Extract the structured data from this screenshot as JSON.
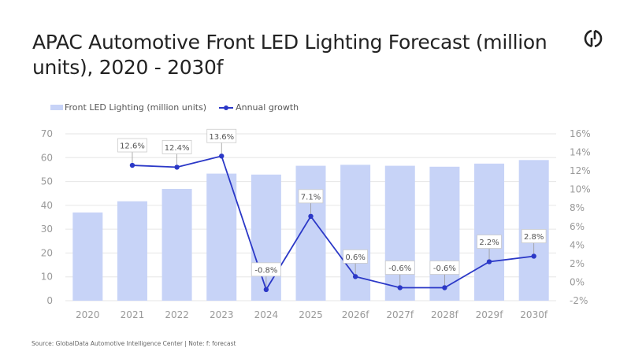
{
  "header": {
    "title": "APAC Automotive Front LED Lighting Forecast (million units), 2020 - 2030f",
    "logo": "globaldata-logo-icon"
  },
  "legend": {
    "bars_label": "Front LED Lighting (million units)",
    "line_label": "Annual growth"
  },
  "footer": {
    "source": "Source: GlobalData Automotive Intelligence Center | Note: f: forecast"
  },
  "colors": {
    "bar": "#c7d3f7",
    "line": "#2b38c7",
    "grid": "#e6e6e6",
    "axis_text": "#999999"
  },
  "chart_data": {
    "type": "bar",
    "title": "APAC Automotive Front LED Lighting Forecast (million units), 2020 - 2030f",
    "xlabel": "",
    "ylabel": "",
    "categories": [
      "2020",
      "2021",
      "2022",
      "2023",
      "2024",
      "2025",
      "2026f",
      "2027f",
      "2028f",
      "2029f",
      "2030f"
    ],
    "series": [
      {
        "name": "Front LED Lighting (million units)",
        "type": "bar",
        "axis": "left",
        "values": [
          37.0,
          41.7,
          46.9,
          53.3,
          52.9,
          56.6,
          57.0,
          56.6,
          56.2,
          57.5,
          59.0
        ]
      },
      {
        "name": "Annual growth",
        "type": "line",
        "axis": "right",
        "values": [
          null,
          12.6,
          12.4,
          13.6,
          -0.8,
          7.1,
          0.6,
          -0.6,
          -0.6,
          2.2,
          2.8
        ],
        "labels": [
          null,
          "12.6%",
          "12.4%",
          "13.6%",
          "-0.8%",
          "7.1%",
          "0.6%",
          "-0.6%",
          "-0.6%",
          "2.2%",
          "2.8%"
        ]
      }
    ],
    "y_left": {
      "min": 0,
      "max": 70,
      "ticks": [
        0,
        10,
        20,
        30,
        40,
        50,
        60,
        70
      ],
      "tick_labels": [
        "0",
        "10",
        "20",
        "30",
        "40",
        "50",
        "60",
        "70"
      ]
    },
    "y_right": {
      "min": -2,
      "max": 16,
      "ticks": [
        -2,
        0,
        2,
        4,
        6,
        8,
        10,
        12,
        14,
        16
      ],
      "tick_labels": [
        "-2%",
        "0%",
        "2%",
        "4%",
        "6%",
        "8%",
        "10%",
        "12%",
        "14%",
        "16%"
      ]
    },
    "grid": true,
    "legend_position": "top-left"
  }
}
